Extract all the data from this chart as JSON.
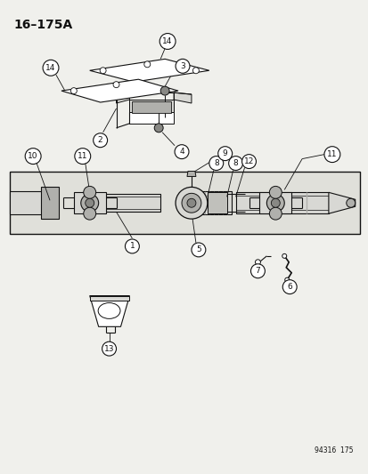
{
  "title": "16–175A",
  "footer": "94316  175",
  "bg_color": "#f0f0ec",
  "line_color": "#111111",
  "white": "#ffffff",
  "gray_light": "#d8d8d4",
  "gray_med": "#b0b0ac",
  "gray_dark": "#888884"
}
